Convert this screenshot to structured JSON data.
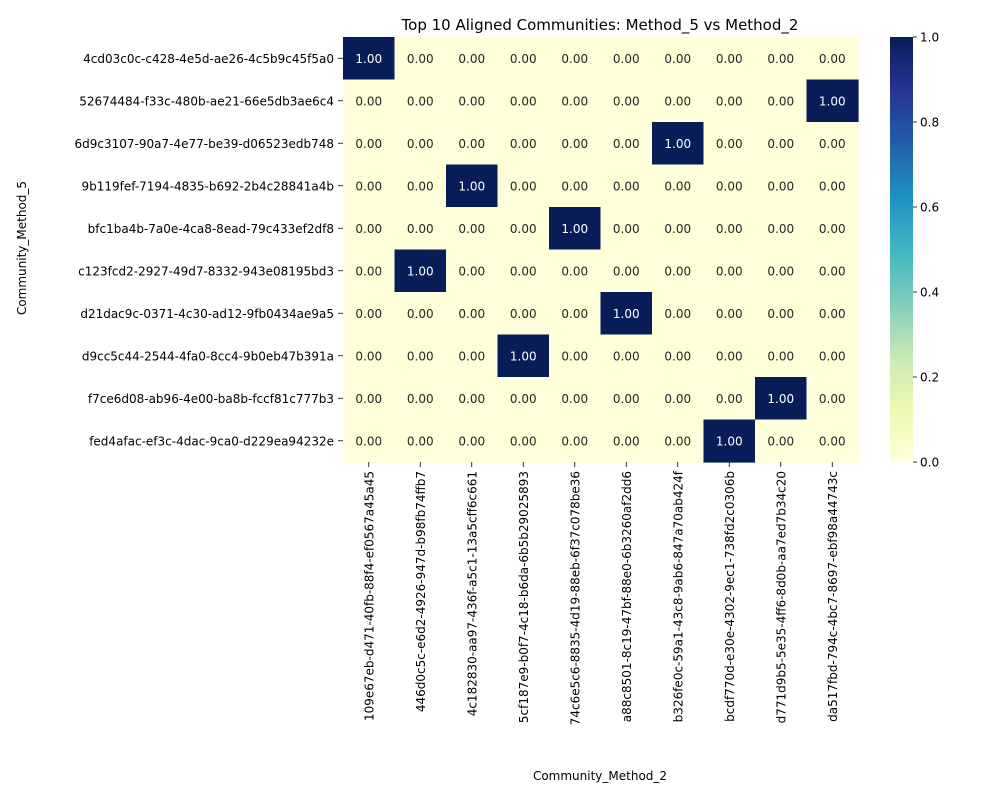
{
  "chart_data": {
    "type": "heatmap",
    "title": "Top 10 Aligned Communities: Method_5 vs Method_2",
    "xlabel": "Community_Method_2",
    "ylabel": "Community_Method_5",
    "x_categories": [
      "109e67eb-d471-40fb-88f4-ef0567a45a45",
      "446d0c5c-e6d2-4926-947d-b98fb74ffb7",
      "4c182830-aa97-436f-a5c1-13a5cff6c661",
      "5cf187e9-b0f7-4c18-b6da-6b5b29025893",
      "74c6e5c6-8835-4d19-88eb-6f37c078be36",
      "a88c8501-8c19-47bf-88e0-6b3260af2dd6",
      "b326fe0c-59a1-43c8-9ab6-847a70ab424f",
      "bcdf770d-e30e-4302-9ec1-738fd2c0306b",
      "d771d9b5-5e35-4ff6-8d0b-aa7ed7b34c20",
      "da517fbd-794c-4bc7-8697-ebf98a44743c"
    ],
    "y_categories": [
      "4cd03c0c-c428-4e5d-ae26-4c5b9c45f5a0",
      "52674484-f33c-480b-ae21-66e5db3ae6c4",
      "6d9c3107-90a7-4e77-be39-d06523edb748",
      "9b119fef-7194-4835-b692-2b4c28841a4b",
      "bfc1ba4b-7a0e-4ca8-8ead-79c433ef2df8",
      "c123fcd2-2927-49d7-8332-943e08195bd3",
      "d21dac9c-0371-4c30-ad12-9fb0434ae9a5",
      "d9cc5c44-2544-4fa0-8cc4-9b0eb47b391a",
      "f7ce6d08-ab96-4e00-ba8b-fccf81c777b3",
      "fed4afac-ef3c-4dac-9ca0-d229ea94232e"
    ],
    "values": [
      [
        1,
        0,
        0,
        0,
        0,
        0,
        0,
        0,
        0,
        0
      ],
      [
        0,
        0,
        0,
        0,
        0,
        0,
        0,
        0,
        0,
        1
      ],
      [
        0,
        0,
        0,
        0,
        0,
        0,
        1,
        0,
        0,
        0
      ],
      [
        0,
        0,
        1,
        0,
        0,
        0,
        0,
        0,
        0,
        0
      ],
      [
        0,
        0,
        0,
        0,
        1,
        0,
        0,
        0,
        0,
        0
      ],
      [
        0,
        1,
        0,
        0,
        0,
        0,
        0,
        0,
        0,
        0
      ],
      [
        0,
        0,
        0,
        0,
        0,
        1,
        0,
        0,
        0,
        0
      ],
      [
        0,
        0,
        0,
        1,
        0,
        0,
        0,
        0,
        0,
        0
      ],
      [
        0,
        0,
        0,
        0,
        0,
        0,
        0,
        0,
        1,
        0
      ],
      [
        0,
        0,
        0,
        0,
        0,
        0,
        0,
        1,
        0,
        0
      ]
    ],
    "value_format": "0.00",
    "colormap": "YlGnBu",
    "colorbar": {
      "range": [
        0,
        1
      ],
      "ticks": [
        "0.0",
        "0.2",
        "0.4",
        "0.6",
        "0.8",
        "1.0"
      ]
    },
    "colors": {
      "low": "#ffffd9",
      "high": "#081d58"
    }
  }
}
